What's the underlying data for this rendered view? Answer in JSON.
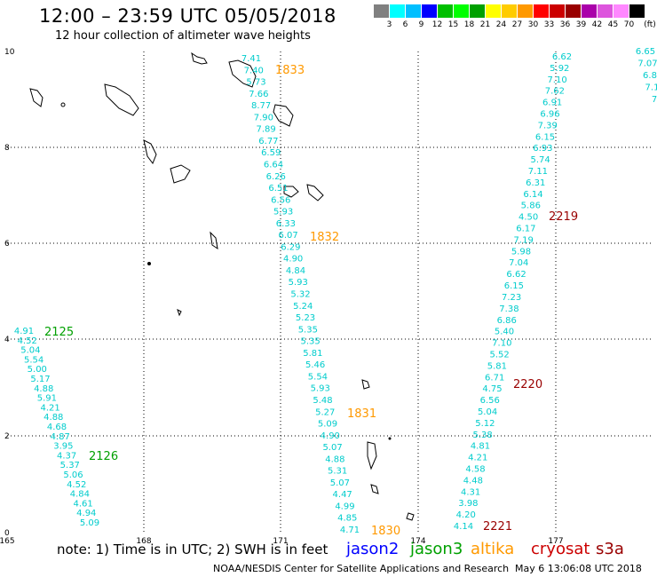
{
  "header": {
    "title": "12:00 – 23:59 UTC 05/05/2018",
    "subtitle": "12 hour collection of altimeter wave heights"
  },
  "color_scale": {
    "unit": "(ft)",
    "colors": [
      "#808080",
      "#00ffff",
      "#00bfff",
      "#0000ff",
      "#00bf00",
      "#00ff00",
      "#00a000",
      "#ffff00",
      "#ffcc00",
      "#ff9900",
      "#ff0000",
      "#cc0000",
      "#990000",
      "#aa00aa",
      "#dd55dd",
      "#ff88ff",
      "#000000"
    ],
    "labels": [
      "3",
      "6",
      "9",
      "12",
      "15",
      "18",
      "21",
      "24",
      "27",
      "30",
      "33",
      "36",
      "39",
      "42",
      "45",
      "70"
    ]
  },
  "axes": {
    "x_ticks": [
      "165",
      "168",
      "171",
      "174",
      "177"
    ],
    "y_ticks": [
      "0",
      "2",
      "4",
      "6",
      "8",
      "10"
    ]
  },
  "tracks": [
    {
      "label": "1833",
      "color": "#ff9900",
      "values": [
        "7.41",
        "7.40",
        "5.73",
        "7.66",
        "8.77",
        "7.90",
        "7.89",
        "6.77",
        "6.59",
        "6.64",
        "6.26",
        "6.51",
        "6.56",
        "5.93",
        "6.33",
        "6.07",
        "6.29",
        "4.90",
        "4.84",
        "5.93",
        "5.32",
        "5.24",
        "5.23",
        "5.35",
        "5.35",
        "5.81",
        "5.46",
        "5.54",
        "5.93",
        "5.48",
        "5.27",
        "5.09",
        "4.90",
        "5.07",
        "4.88",
        "5.31",
        "5.07",
        "4.47",
        "4.99",
        "4.85",
        "4.71"
      ]
    },
    {
      "label": "1832",
      "color": "#ff9900"
    },
    {
      "label": "1831",
      "color": "#ff9900"
    },
    {
      "label": "1830",
      "color": "#ff9900"
    },
    {
      "label": "2219",
      "color": "#990000",
      "values": [
        "6.62",
        "5.92",
        "7.10",
        "7.62",
        "6.91",
        "6.96",
        "7.39",
        "6.15",
        "6.93",
        "5.74",
        "7.11",
        "6.31",
        "6.14",
        "5.86",
        "4.50",
        "6.17",
        "7.19",
        "5.98",
        "7.04",
        "6.62",
        "6.15",
        "7.23",
        "7.38",
        "6.86",
        "5.40",
        "7.10",
        "5.52",
        "5.81",
        "6.71",
        "4.75",
        "6.56",
        "5.04",
        "5.12",
        "5.38",
        "4.81",
        "4.21",
        "4.58",
        "4.48",
        "4.31",
        "3.98",
        "4.20",
        "4.14"
      ]
    },
    {
      "label": "2220",
      "color": "#990000"
    },
    {
      "label": "2221",
      "color": "#990000"
    },
    {
      "label": "2125",
      "color": "#00a000",
      "values": [
        "4.91",
        "4.52",
        "5.04",
        "5.54",
        "5.00",
        "5.17",
        "4.88",
        "5.91",
        "4.21",
        "4.88",
        "4.68",
        "4.87",
        "3.95",
        "4.37",
        "5.37",
        "5.06",
        "4.52",
        "4.84",
        "4.61",
        "4.94",
        "5.09"
      ]
    },
    {
      "label": "2126",
      "color": "#00a000"
    },
    {
      "label": "",
      "color": "#00cccc",
      "values": [
        "6.65",
        "7.07",
        "6.8",
        "7.1",
        "7"
      ]
    }
  ],
  "note": "note:  1) Time is in UTC; 2) SWH is in feet",
  "legend": [
    {
      "name": "jason2",
      "color": "#0000ff"
    },
    {
      "name": "jason3",
      "color": "#00a000"
    },
    {
      "name": "altika",
      "color": "#ff9900"
    },
    {
      "name": "cryosat",
      "color": "#cc0000"
    },
    {
      "name": "s3a",
      "color": "#990000"
    }
  ],
  "footer": "NOAA/NESDIS Center for Satellite Applications and Research",
  "footer_date": "May  6 13:06:08 UTC 2018"
}
